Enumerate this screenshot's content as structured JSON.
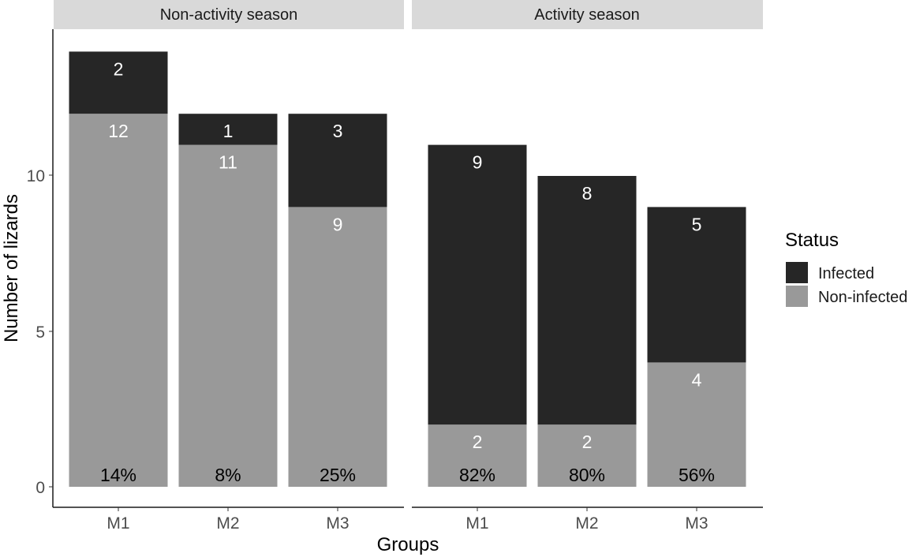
{
  "chart_data": {
    "type": "bar",
    "stacked": true,
    "xlabel": "Groups",
    "ylabel": "Number of lizards",
    "ylim": [
      0,
      15
    ],
    "yticks": [
      0,
      5,
      10
    ],
    "grid": false,
    "legend": {
      "title": "Status",
      "position": "right",
      "entries": [
        {
          "name": "Infected",
          "color": "#262626"
        },
        {
          "name": "Non-infected",
          "color": "#999999"
        }
      ]
    },
    "panels": [
      {
        "title": "Non-activity season",
        "categories": [
          "M1",
          "M2",
          "M3"
        ],
        "series": [
          {
            "name": "Non-infected",
            "values": [
              12,
              11,
              9
            ]
          },
          {
            "name": "Infected",
            "values": [
              2,
              1,
              3
            ]
          }
        ],
        "percent_labels": [
          "14%",
          "8%",
          "25%"
        ]
      },
      {
        "title": "Activity season",
        "categories": [
          "M1",
          "M2",
          "M3"
        ],
        "series": [
          {
            "name": "Non-infected",
            "values": [
              2,
              2,
              4
            ]
          },
          {
            "name": "Infected",
            "values": [
              9,
              8,
              5
            ]
          }
        ],
        "percent_labels": [
          "82%",
          "80%",
          "56%"
        ]
      }
    ]
  }
}
